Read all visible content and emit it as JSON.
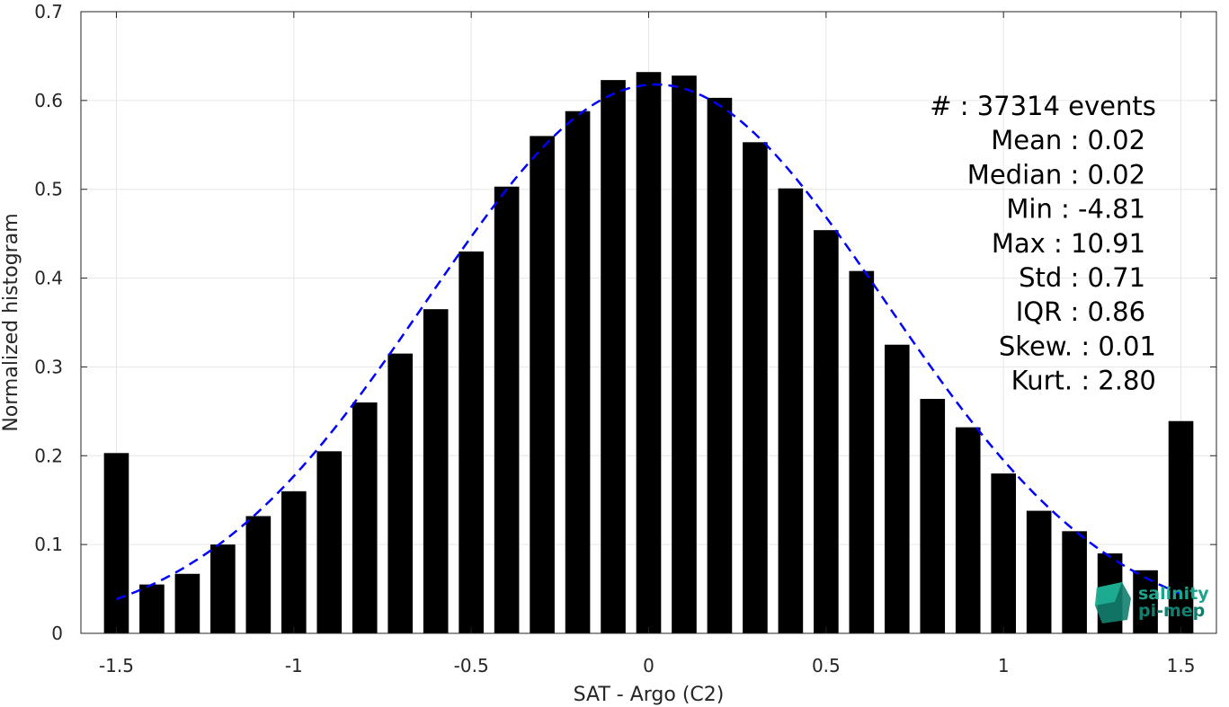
{
  "chart_data": {
    "type": "bar",
    "xlabel": "SAT - Argo (C2)",
    "ylabel": "Normalized histogram",
    "xlim": [
      -1.6,
      1.6
    ],
    "ylim": [
      0,
      0.7
    ],
    "xticks": [
      -1.5,
      -1,
      -0.5,
      0,
      0.5,
      1,
      1.5
    ],
    "xtick_labels": [
      "-1.5",
      "-1",
      "-0.5",
      "0",
      "0.5",
      "1",
      "1.5"
    ],
    "yticks": [
      0,
      0.1,
      0.2,
      0.3,
      0.4,
      0.5,
      0.6,
      0.7
    ],
    "ytick_labels": [
      "0",
      "0.1",
      "0.2",
      "0.3",
      "0.4",
      "0.5",
      "0.6",
      "0.7"
    ],
    "grid": true,
    "bar_width": 0.07,
    "x": [
      -1.5,
      -1.4,
      -1.3,
      -1.2,
      -1.1,
      -1.0,
      -0.9,
      -0.8,
      -0.7,
      -0.6,
      -0.5,
      -0.4,
      -0.3,
      -0.2,
      -0.1,
      0.0,
      0.1,
      0.2,
      0.3,
      0.4,
      0.5,
      0.6,
      0.7,
      0.8,
      0.9,
      1.0,
      1.1,
      1.2,
      1.3,
      1.4,
      1.5
    ],
    "values": [
      0.203,
      0.055,
      0.067,
      0.1,
      0.132,
      0.16,
      0.205,
      0.26,
      0.315,
      0.365,
      0.43,
      0.503,
      0.56,
      0.588,
      0.623,
      0.632,
      0.628,
      0.603,
      0.553,
      0.501,
      0.454,
      0.408,
      0.325,
      0.264,
      0.232,
      0.18,
      0.138,
      0.115,
      0.09,
      0.071,
      0.239
    ],
    "bar_color": "#000000",
    "fit": {
      "type": "gaussian",
      "mean": 0.02,
      "std": 0.645,
      "x_range": [
        -1.5,
        1.5
      ],
      "color": "#0000ff",
      "style": "dashed"
    },
    "stats": [
      {
        "label": "#  : 37314 events",
        "anchor": "end",
        "x_data": 1.43
      },
      {
        "label": "Mean : 0.02",
        "anchor": "end",
        "x_data": 1.4
      },
      {
        "label": "Median : 0.02",
        "anchor": "end",
        "x_data": 1.4
      },
      {
        "label": "Min : -4.81",
        "anchor": "end",
        "x_data": 1.4
      },
      {
        "label": "Max : 10.91",
        "anchor": "end",
        "x_data": 1.4
      },
      {
        "label": "Std : 0.71",
        "anchor": "end",
        "x_data": 1.4
      },
      {
        "label": "IQR : 0.86",
        "anchor": "end",
        "x_data": 1.4
      },
      {
        "label": "Skew. : 0.01",
        "anchor": "end",
        "x_data": 1.43
      },
      {
        "label": "Kurt. : 2.80",
        "anchor": "end",
        "x_data": 1.43
      }
    ]
  },
  "logo": {
    "line1": "salinity",
    "line2": "pi-mep",
    "color": "#1aa58c"
  }
}
